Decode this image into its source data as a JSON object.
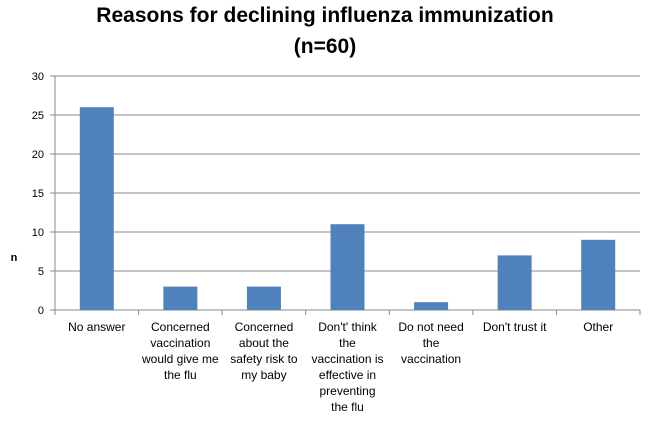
{
  "chart_data": {
    "type": "bar",
    "title_lines": [
      "Reasons for declining influenza immunization",
      "(n=60)"
    ],
    "xlabel": "",
    "ylabel": "n",
    "ylim": [
      0,
      30
    ],
    "yticks": [
      0,
      5,
      10,
      15,
      20,
      25,
      30
    ],
    "grid": true,
    "categories": [
      [
        "No answer"
      ],
      [
        "Concerned",
        "vaccination",
        "would give me",
        "the flu"
      ],
      [
        "Concerned",
        "about the",
        "safety risk to",
        "my baby"
      ],
      [
        "Don't' think",
        "the",
        "vaccination is",
        "effective in",
        "preventing",
        "the flu"
      ],
      [
        "Do not need",
        "the",
        "vaccination"
      ],
      [
        "Don't trust it"
      ],
      [
        "Other"
      ]
    ],
    "values": [
      26,
      3,
      3,
      11,
      1,
      7,
      9
    ],
    "colors": {
      "bar": "#4F81BD",
      "grid": "#888888",
      "axis": "#888888"
    }
  }
}
